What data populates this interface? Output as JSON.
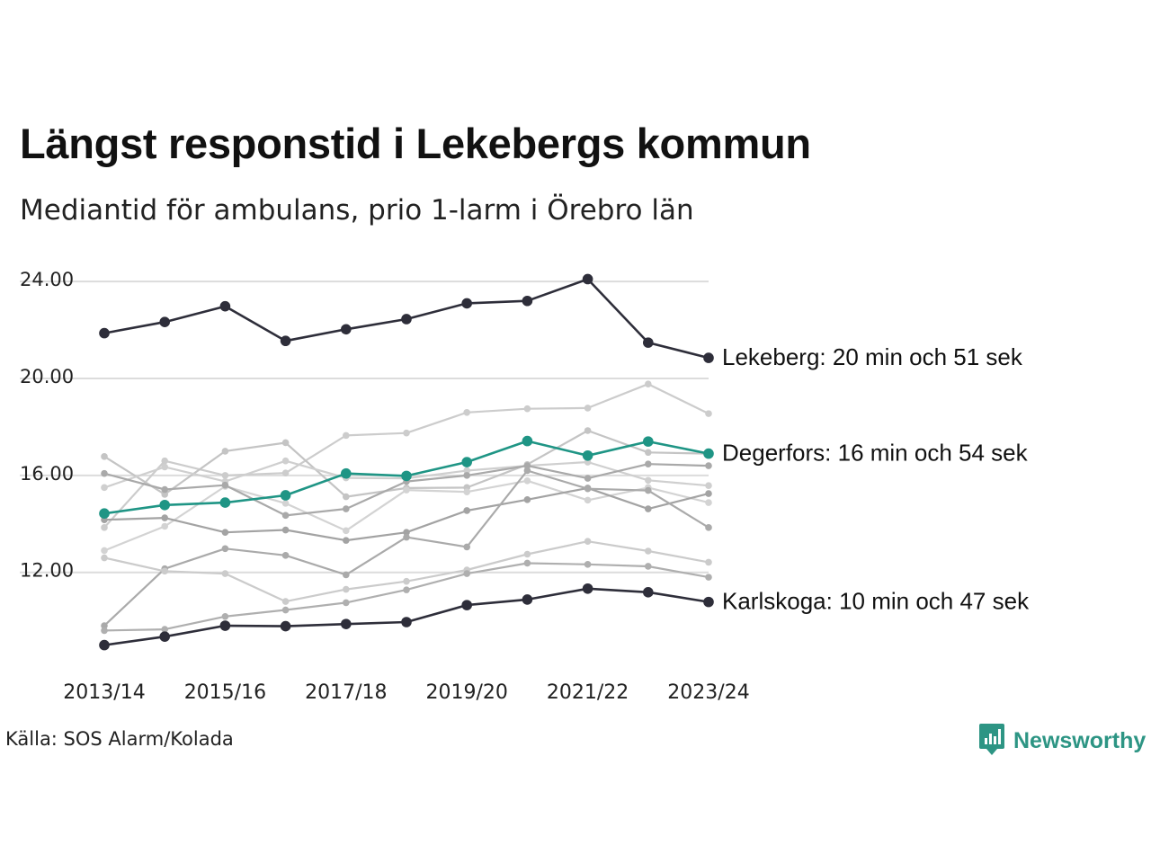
{
  "title": "Längst responstid i Lekebergs kommun",
  "subtitle": "Mediantid för ambulans, prio 1-larm i Örebro län",
  "source": "Källa: SOS Alarm/Kolada",
  "brand": {
    "name": "Newsworthy",
    "icon": "newsworthy-logo-icon",
    "color": "#2d9584"
  },
  "colors": {
    "highlight_dark": "#2e2e3a",
    "highlight_teal": "#1f9585",
    "grid": "#dcdcdc"
  },
  "chart_data": {
    "type": "line",
    "x": [
      "2013/14",
      "2014/15",
      "2015/16",
      "2016/17",
      "2017/18",
      "2018/19",
      "2019/20",
      "2020/21",
      "2021/22",
      "2022/23",
      "2023/24"
    ],
    "x_tick_labels": [
      "2013/14",
      "2015/16",
      "2017/18",
      "2019/20",
      "2021/22",
      "2023/24"
    ],
    "y_ticks": [
      12,
      16,
      20,
      24
    ],
    "y_tick_labels": [
      "12.00",
      "16.00",
      "20.00",
      "24.00"
    ],
    "ylim": [
      8.8,
      24.6
    ],
    "grid": "horizontal",
    "series": [
      {
        "values": [
          21.87,
          22.33,
          22.98,
          21.55,
          22.03,
          22.45,
          23.1,
          23.2,
          24.1,
          21.48,
          20.85
        ],
        "color": "#2e2e3a",
        "highlight": true,
        "label": "Lekeberg: 20 min och 51 sek"
      },
      {
        "values": [
          14.43,
          14.78,
          14.88,
          15.18,
          16.08,
          15.98,
          16.55,
          17.42,
          16.82,
          17.4,
          16.9
        ],
        "color": "#1f9585",
        "highlight": true,
        "label": "Degerfors: 16 min och 54 sek"
      },
      {
        "values": [
          9.0,
          9.35,
          9.8,
          9.78,
          9.87,
          9.95,
          10.65,
          10.88,
          11.33,
          11.18,
          10.78
        ],
        "color": "#2e2e3a",
        "highlight": true,
        "label": "Karlskoga: 10 min och 47 sek"
      },
      {
        "values": [
          13.85,
          16.6,
          16.0,
          16.1,
          17.65,
          17.75,
          18.6,
          18.75,
          18.78,
          19.77,
          18.55
        ],
        "color": "#cccccc"
      },
      {
        "values": [
          16.78,
          15.22,
          17.0,
          17.35,
          15.12,
          15.48,
          15.5,
          16.45,
          17.85,
          16.95,
          16.9
        ],
        "color": "#c4c4c4"
      },
      {
        "values": [
          15.5,
          16.35,
          15.75,
          16.6,
          15.9,
          15.88,
          16.2,
          16.4,
          16.55,
          15.8,
          15.58
        ],
        "color": "#cfcfcf"
      },
      {
        "values": [
          12.9,
          13.9,
          15.55,
          14.85,
          13.72,
          15.4,
          15.32,
          15.78,
          14.98,
          15.5,
          14.88
        ],
        "color": "#d3d3d3"
      },
      {
        "values": [
          16.08,
          15.42,
          15.6,
          14.35,
          14.62,
          15.75,
          16.0,
          16.4,
          15.88,
          16.47,
          16.4
        ],
        "color": "#a9a9a9"
      },
      {
        "values": [
          14.17,
          14.25,
          13.65,
          13.75,
          13.32,
          13.65,
          14.55,
          15.0,
          15.48,
          14.62,
          15.25
        ],
        "color": "#a3a3a3"
      },
      {
        "values": [
          9.8,
          12.15,
          12.98,
          12.7,
          11.9,
          13.45,
          13.05,
          16.2,
          15.45,
          15.38,
          13.85
        ],
        "color": "#aaaaaa"
      },
      {
        "values": [
          12.6,
          12.05,
          11.95,
          10.8,
          11.3,
          11.63,
          12.1,
          12.75,
          13.28,
          12.88,
          12.42
        ],
        "color": "#cbcbcb"
      },
      {
        "values": [
          9.6,
          9.65,
          10.18,
          10.45,
          10.75,
          11.28,
          11.95,
          12.38,
          12.33,
          12.25,
          11.8
        ],
        "color": "#afafaf"
      }
    ]
  }
}
